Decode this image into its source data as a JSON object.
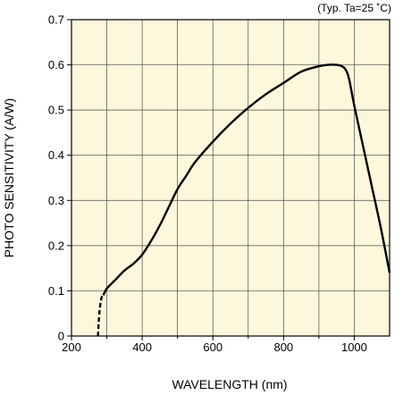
{
  "chart_data": {
    "type": "line",
    "title": "",
    "annotation": "(Typ. Ta=25 ˚C)",
    "xlabel": "WAVELENGTH (nm)",
    "ylabel": "PHOTO SENSITIVITY (A/W)",
    "xlim": [
      200,
      1100
    ],
    "ylim": [
      0,
      0.7
    ],
    "x_ticks": [
      200,
      400,
      600,
      800,
      1000
    ],
    "x_tick_labels": [
      "200",
      "400",
      "600",
      "800",
      "1000"
    ],
    "y_ticks": [
      0,
      0.1,
      0.2,
      0.3,
      0.4,
      0.5,
      0.6,
      0.7
    ],
    "y_tick_labels": [
      "0",
      "0.1",
      "0.2",
      "0.3",
      "0.4",
      "0.5",
      "0.6",
      "0.7"
    ],
    "x_minor_grid_step": 100,
    "grid": true,
    "background_color": "#fdf8dc",
    "line_color": "#000000",
    "series": [
      {
        "style": "dashed",
        "x": [
          275,
          277,
          280,
          285,
          290
        ],
        "y": [
          0.0,
          0.03,
          0.06,
          0.085,
          0.09
        ]
      },
      {
        "style": "solid",
        "x": [
          290,
          300,
          325,
          350,
          375,
          400,
          425,
          450,
          475,
          500,
          525,
          550,
          600,
          650,
          700,
          750,
          800,
          850,
          900,
          925,
          950,
          965,
          975,
          985,
          1000,
          1025,
          1050,
          1075,
          1100
        ],
        "y": [
          0.09,
          0.105,
          0.125,
          0.145,
          0.16,
          0.18,
          0.21,
          0.245,
          0.285,
          0.325,
          0.355,
          0.385,
          0.43,
          0.47,
          0.505,
          0.535,
          0.56,
          0.585,
          0.597,
          0.6,
          0.6,
          0.597,
          0.59,
          0.57,
          0.51,
          0.42,
          0.33,
          0.24,
          0.14
        ]
      }
    ]
  }
}
